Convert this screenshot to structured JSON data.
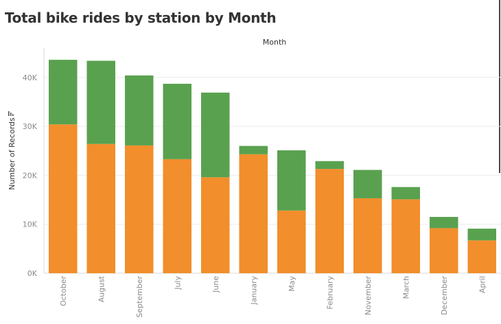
{
  "title": "Total bike rides by station by Month",
  "chart_data": {
    "type": "bar",
    "stacked": true,
    "column_header": "Month",
    "ylabel": "Number of Records",
    "categories": [
      "October",
      "August",
      "September",
      "July",
      "June",
      "January",
      "May",
      "February",
      "November",
      "March",
      "December",
      "April"
    ],
    "ylim": [
      0,
      46000
    ],
    "yticks": [
      0,
      10000,
      20000,
      30000,
      40000
    ],
    "ytick_labels": [
      "0K",
      "10K",
      "20K",
      "30K",
      "40K"
    ],
    "grid": true,
    "series": [
      {
        "color": "#f28e2b",
        "values": [
          30400,
          26400,
          26100,
          23300,
          19600,
          24300,
          12800,
          21300,
          15300,
          15100,
          9200,
          6700
        ]
      },
      {
        "color": "#59a14f",
        "values": [
          13200,
          17000,
          14300,
          15400,
          17300,
          1700,
          12300,
          1600,
          5800,
          2500,
          2300,
          2400
        ]
      }
    ]
  }
}
